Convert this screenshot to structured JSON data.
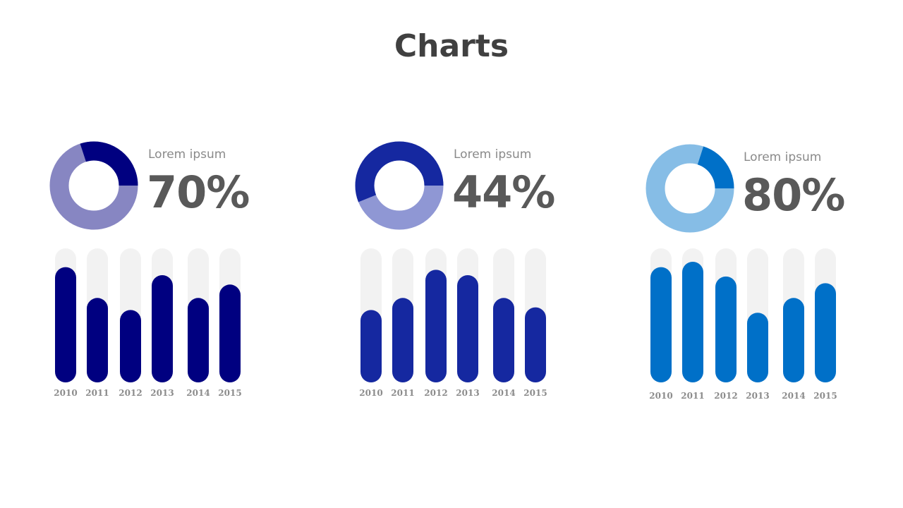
{
  "title": "Charts",
  "colors": {
    "track": "#f2f2f2",
    "year_label": "#8c8c8c"
  },
  "chart_data": [
    {
      "type": "bar",
      "label": "Lorem ipsum",
      "percent_text": "70%",
      "donut": {
        "value": 0.3,
        "main_color": "#000080",
        "rest_color": "#8786c2"
      },
      "bar_color": "#000080",
      "categories": [
        "2010",
        "2011",
        "2012",
        "2013",
        "2014",
        "2015"
      ],
      "values": [
        86,
        63,
        54,
        80,
        63,
        73
      ],
      "ylim": [
        0,
        100
      ]
    },
    {
      "type": "bar",
      "label": "Lorem ipsum",
      "percent_text": "44%",
      "donut": {
        "value": 0.56,
        "main_color": "#1528a0",
        "rest_color": "#8f97d4"
      },
      "bar_color": "#1528a0",
      "categories": [
        "2010",
        "2011",
        "2012",
        "2013",
        "2014",
        "2015"
      ],
      "values": [
        54,
        63,
        84,
        80,
        63,
        56
      ],
      "ylim": [
        0,
        100
      ]
    },
    {
      "type": "bar",
      "label": "Lorem ipsum",
      "percent_text": "80%",
      "donut": {
        "value": 0.2,
        "main_color": "#0070c8",
        "rest_color": "#86bde6"
      },
      "bar_color": "#0070c8",
      "categories": [
        "2010",
        "2011",
        "2012",
        "2013",
        "2014",
        "2015"
      ],
      "values": [
        86,
        90,
        79,
        52,
        63,
        74
      ],
      "ylim": [
        0,
        100
      ]
    }
  ]
}
